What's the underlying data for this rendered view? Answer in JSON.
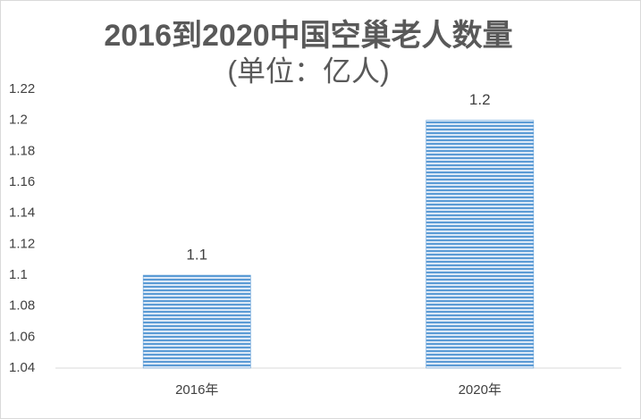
{
  "chart_data": {
    "type": "bar",
    "title": "2016到2020中国空巢老人数量",
    "subtitle": "(单位：亿人)",
    "categories": [
      "2016年",
      "2020年"
    ],
    "values": [
      1.1,
      1.2
    ],
    "color": "#5b9bd5",
    "ylim": [
      1.04,
      1.22
    ],
    "yticks": [
      1.04,
      1.06,
      1.08,
      1.1,
      1.12,
      1.14,
      1.16,
      1.18,
      1.2,
      1.22
    ],
    "grid": false
  }
}
